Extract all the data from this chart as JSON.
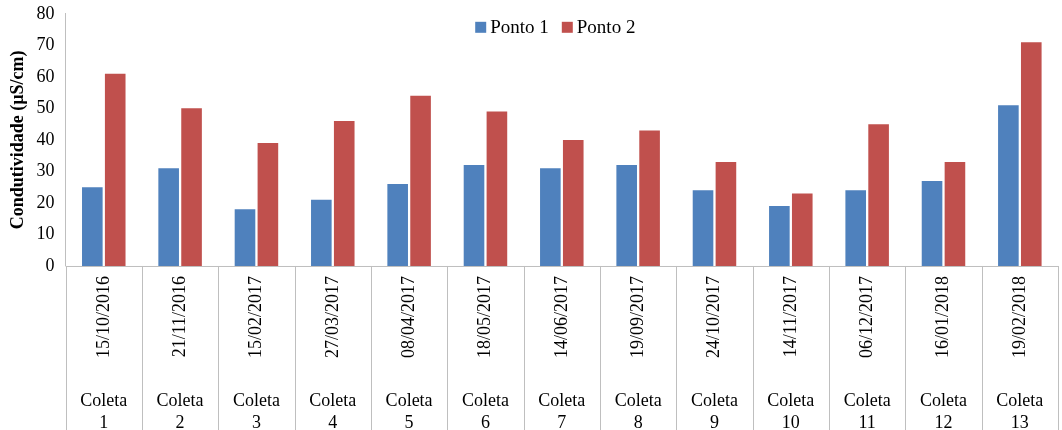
{
  "chart_data": {
    "type": "bar",
    "ylabel": "Condutividade (µS/cm)",
    "categories": [
      "15/10/2016",
      "21/11/2016",
      "15/02/2017",
      "27/03/2017",
      "08/04/2017",
      "18/05/2017",
      "14/06/2017",
      "19/09/2017",
      "24/10/2017",
      "14/11/2017",
      "06/12/2017",
      "16/01/2018",
      "19/02/2018"
    ],
    "series": [
      {
        "name": "Ponto 1",
        "color": "#4f81bd",
        "values": [
          25,
          31,
          18,
          21,
          26,
          32,
          31,
          32,
          24,
          19,
          24,
          27,
          51
        ]
      },
      {
        "name": "Ponto 2",
        "color": "#c0504d",
        "values": [
          61,
          50,
          39,
          46,
          54,
          49,
          40,
          43,
          33,
          23,
          45,
          33,
          71
        ]
      }
    ],
    "ylim": [
      0,
      80
    ],
    "yticks": [
      0,
      10,
      20,
      30,
      40,
      50,
      60,
      70,
      80
    ],
    "grid": false,
    "legend": "top",
    "annotations": [
      "Coleta 1",
      "Coleta 2",
      "Coleta 3",
      "Coleta 4",
      "Coleta 5",
      "Coleta 6",
      "Coleta 7",
      "Coleta 8",
      "Coleta 9",
      "Coleta 10",
      "Coleta 11",
      "Coleta 12",
      "Coleta 13"
    ]
  }
}
